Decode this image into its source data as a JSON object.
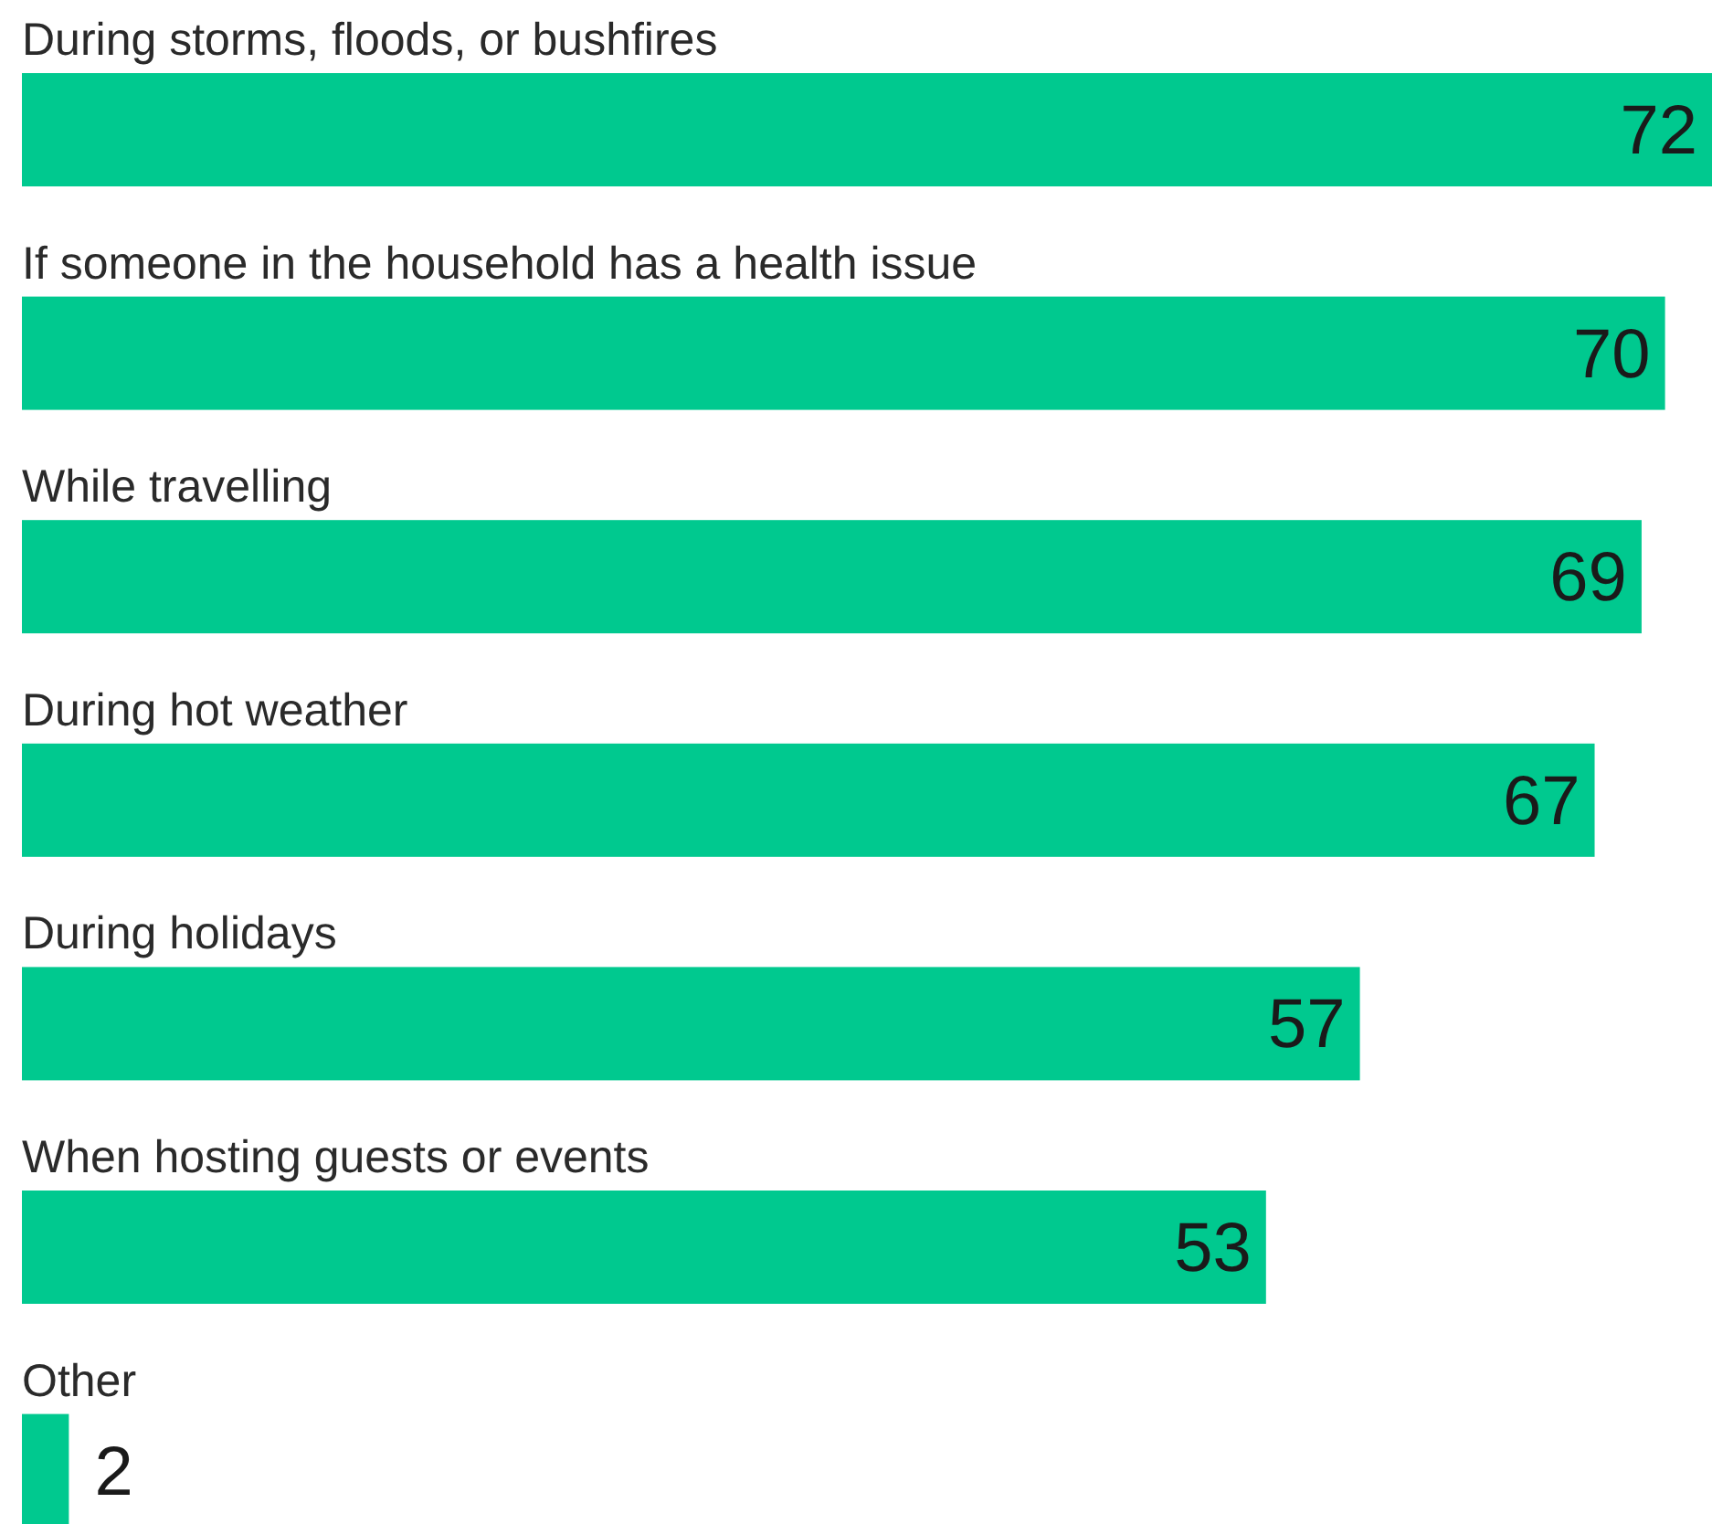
{
  "chart_data": {
    "type": "bar",
    "orientation": "horizontal",
    "categories": [
      "During storms, floods, or bushfires",
      "If someone in the household has a health issue",
      "While travelling",
      "During hot weather",
      "During holidays",
      "When hosting guests or events",
      "Other"
    ],
    "values": [
      72,
      70,
      69,
      67,
      57,
      53,
      2
    ],
    "color": "#00c98f",
    "data_labels": true,
    "xlim": [
      0,
      72
    ]
  }
}
